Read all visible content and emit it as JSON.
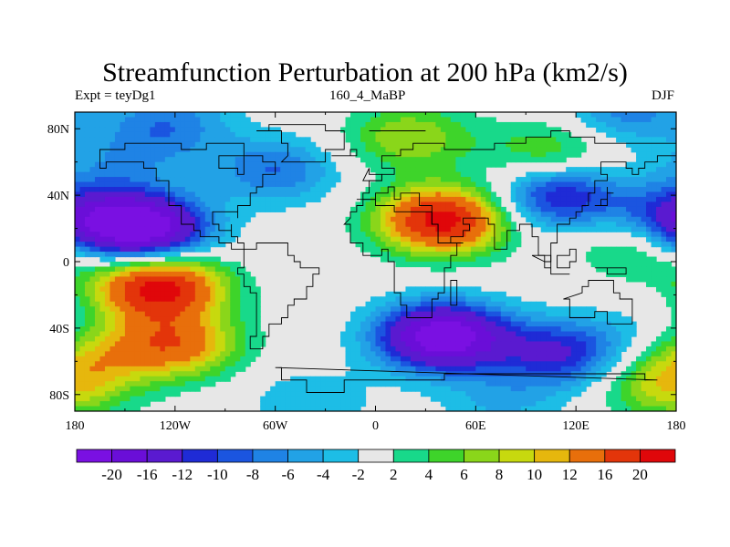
{
  "chart_data": {
    "type": "heatmap",
    "title": "Streamfunction Perturbation at 200 hPa (km2/s)",
    "subtitle_left": "Expt = teyDg1",
    "subtitle_center": "160_4_MaBP",
    "subtitle_right": "DJF",
    "x_ticks": [
      {
        "value": -180,
        "label": "180"
      },
      {
        "value": -120,
        "label": "120W"
      },
      {
        "value": -60,
        "label": "60W"
      },
      {
        "value": 0,
        "label": "0"
      },
      {
        "value": 60,
        "label": "60E"
      },
      {
        "value": 120,
        "label": "120E"
      },
      {
        "value": 180,
        "label": "180"
      }
    ],
    "y_ticks": [
      {
        "value": 80,
        "label": "80N"
      },
      {
        "value": 40,
        "label": "40N"
      },
      {
        "value": 0,
        "label": "0"
      },
      {
        "value": -40,
        "label": "40S"
      },
      {
        "value": -80,
        "label": "80S"
      }
    ],
    "xlim": [
      -180,
      180
    ],
    "ylim": [
      -90,
      90
    ],
    "colorbar": {
      "labels": [
        "-20",
        "-16",
        "-12",
        "-10",
        "-8",
        "-6",
        "-4",
        "-2",
        "2",
        "4",
        "6",
        "8",
        "10",
        "12",
        "16",
        "20"
      ],
      "colors": [
        "#7a10e2",
        "#6a0ed8",
        "#5a1ad0",
        "#1f2bd6",
        "#1b55e0",
        "#1f83e5",
        "#22a2e6",
        "#1dbde6",
        "#e7e7e7",
        "#18d98a",
        "#3ed42a",
        "#8ad61a",
        "#c7d90e",
        "#e6b70d",
        "#e86f0b",
        "#e3350a",
        "#e0070a"
      ]
    },
    "anomalies": [
      {
        "lon": -140,
        "lat": 20,
        "value": -24
      },
      {
        "lon": -130,
        "lat": 75,
        "value": -5
      },
      {
        "lon": -60,
        "lat": 55,
        "value": -8
      },
      {
        "lon": 110,
        "lat": 40,
        "value": -13
      },
      {
        "lon": 180,
        "lat": 25,
        "value": -12
      },
      {
        "lon": -160,
        "lat": 55,
        "value": -4
      },
      {
        "lon": -120,
        "lat": 90,
        "value": -4
      },
      {
        "lon": 150,
        "lat": 90,
        "value": -7
      },
      {
        "lon": 110,
        "lat": -55,
        "value": -12
      },
      {
        "lon": 165,
        "lat": -45,
        "value": -3
      },
      {
        "lon": 40,
        "lat": -45,
        "value": -24
      },
      {
        "lon": 160,
        "lat": 10,
        "value": 7
      },
      {
        "lon": -40,
        "lat": -85,
        "value": -4
      },
      {
        "lon": 75,
        "lat": -85,
        "value": -4
      },
      {
        "lon": 40,
        "lat": 25,
        "value": 22
      },
      {
        "lon": 105,
        "lat": 65,
        "value": 7
      },
      {
        "lon": -130,
        "lat": -15,
        "value": 22
      },
      {
        "lon": 20,
        "lat": 75,
        "value": 8
      },
      {
        "lon": 175,
        "lat": -75,
        "value": 9
      },
      {
        "lon": -120,
        "lat": -50,
        "value": 14
      },
      {
        "lon": -170,
        "lat": -55,
        "value": 7
      }
    ]
  }
}
